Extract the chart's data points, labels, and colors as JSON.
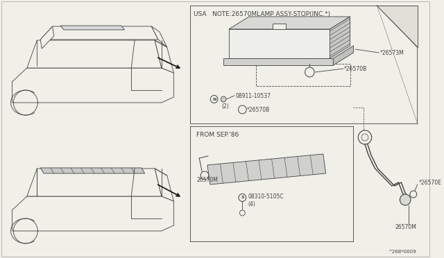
{
  "bg_color": "#f0efe8",
  "line_color": "#404040",
  "page_bg": "#f0efe8",
  "part_number_ref": "^268*0009",
  "usa_note": "USA   NOTE:26570MLAMP ASSY-STOP(INC.*)",
  "from_sep86": "FROM SEP.'86",
  "parts": {
    "26573M": "*26573M",
    "26570B_top": "*26570B",
    "26570B_bot": "*26570B",
    "08911": "08911-10537",
    "08911_qty": "(2)",
    "08310": "08310-5105C",
    "08310_qty": "(4)",
    "26570E": "*26570E",
    "26570M_label1": "26570M",
    "26570M_label2": "26570M"
  }
}
